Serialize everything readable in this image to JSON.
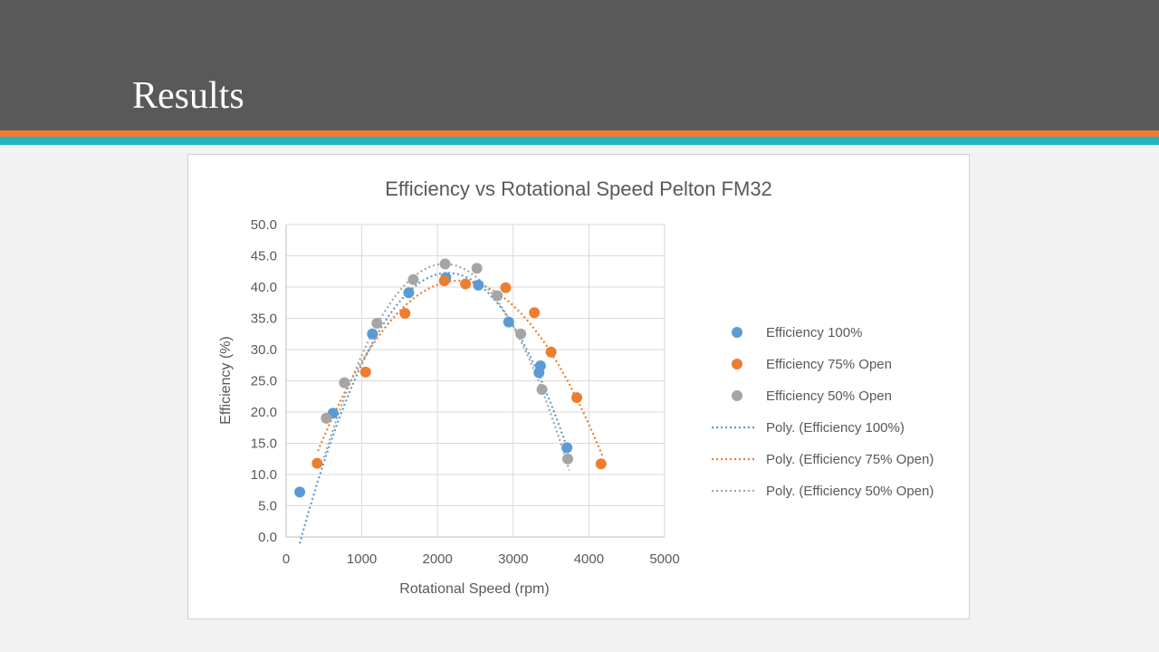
{
  "slide": {
    "title": "Results",
    "colors": {
      "header_bg": "#595959",
      "stripe_orange": "#ed7d31",
      "stripe_teal": "#1fb5c1",
      "page_bg": "#f2f2f2"
    }
  },
  "chart_data": {
    "type": "scatter",
    "title": "Efficiency vs Rotational Speed Pelton FM32",
    "xlabel": "Rotational Speed (rpm)",
    "ylabel": "Efficiency (%)",
    "xlim": [
      0,
      5000
    ],
    "ylim": [
      0,
      50
    ],
    "x_ticks": [
      "0",
      "1000",
      "2000",
      "3000",
      "4000",
      "5000"
    ],
    "y_ticks": [
      "0.0",
      "5.0",
      "10.0",
      "15.0",
      "20.0",
      "25.0",
      "30.0",
      "35.0",
      "40.0",
      "45.0",
      "50.0"
    ],
    "grid": true,
    "legend_position": "right",
    "series": [
      {
        "name": "Efficiency 100%",
        "color": "#5b9bd5",
        "points": [
          [
            180,
            7.2
          ],
          [
            620,
            19.8
          ],
          [
            1140,
            32.5
          ],
          [
            1620,
            39.1
          ],
          [
            2110,
            41.5
          ],
          [
            2540,
            40.3
          ],
          [
            2940,
            34.4
          ],
          [
            3340,
            26.3
          ],
          [
            3360,
            27.4
          ],
          [
            3710,
            14.3
          ]
        ]
      },
      {
        "name": "Efficiency 75% Open",
        "color": "#ed7d31",
        "points": [
          [
            410,
            11.8
          ],
          [
            1050,
            26.4
          ],
          [
            1570,
            35.8
          ],
          [
            2090,
            41.0
          ],
          [
            2370,
            40.5
          ],
          [
            2900,
            39.9
          ],
          [
            3280,
            35.9
          ],
          [
            3500,
            29.6
          ],
          [
            3840,
            22.3
          ],
          [
            4160,
            11.7
          ]
        ]
      },
      {
        "name": "Efficiency 50% Open",
        "color": "#a5a5a5",
        "points": [
          [
            530,
            19.0
          ],
          [
            770,
            24.7
          ],
          [
            1200,
            34.2
          ],
          [
            1680,
            41.2
          ],
          [
            2100,
            43.7
          ],
          [
            2520,
            43.0
          ],
          [
            2790,
            38.6
          ],
          [
            3100,
            32.5
          ],
          [
            3380,
            23.6
          ],
          [
            3720,
            12.5
          ]
        ]
      }
    ],
    "trendlines": [
      {
        "name": "Poly. (Efficiency 100%)",
        "color": "#5b9bd5",
        "x_range": [
          180,
          3720
        ],
        "coef": [
          -1.13e-05,
          0.0483,
          -9.35
        ]
      },
      {
        "name": "Poly. (Efficiency 75% Open)",
        "color": "#ed7d31",
        "x_range": [
          420,
          4180
        ],
        "coef": [
          -7.83e-06,
          0.0358,
          0.1
        ]
      },
      {
        "name": "Poly. (Efficiency 50% Open)",
        "color": "#a5a5a5",
        "x_range": [
          500,
          3740
        ],
        "coef": [
          -1.22e-05,
          0.0511,
          -9.8
        ]
      }
    ]
  }
}
